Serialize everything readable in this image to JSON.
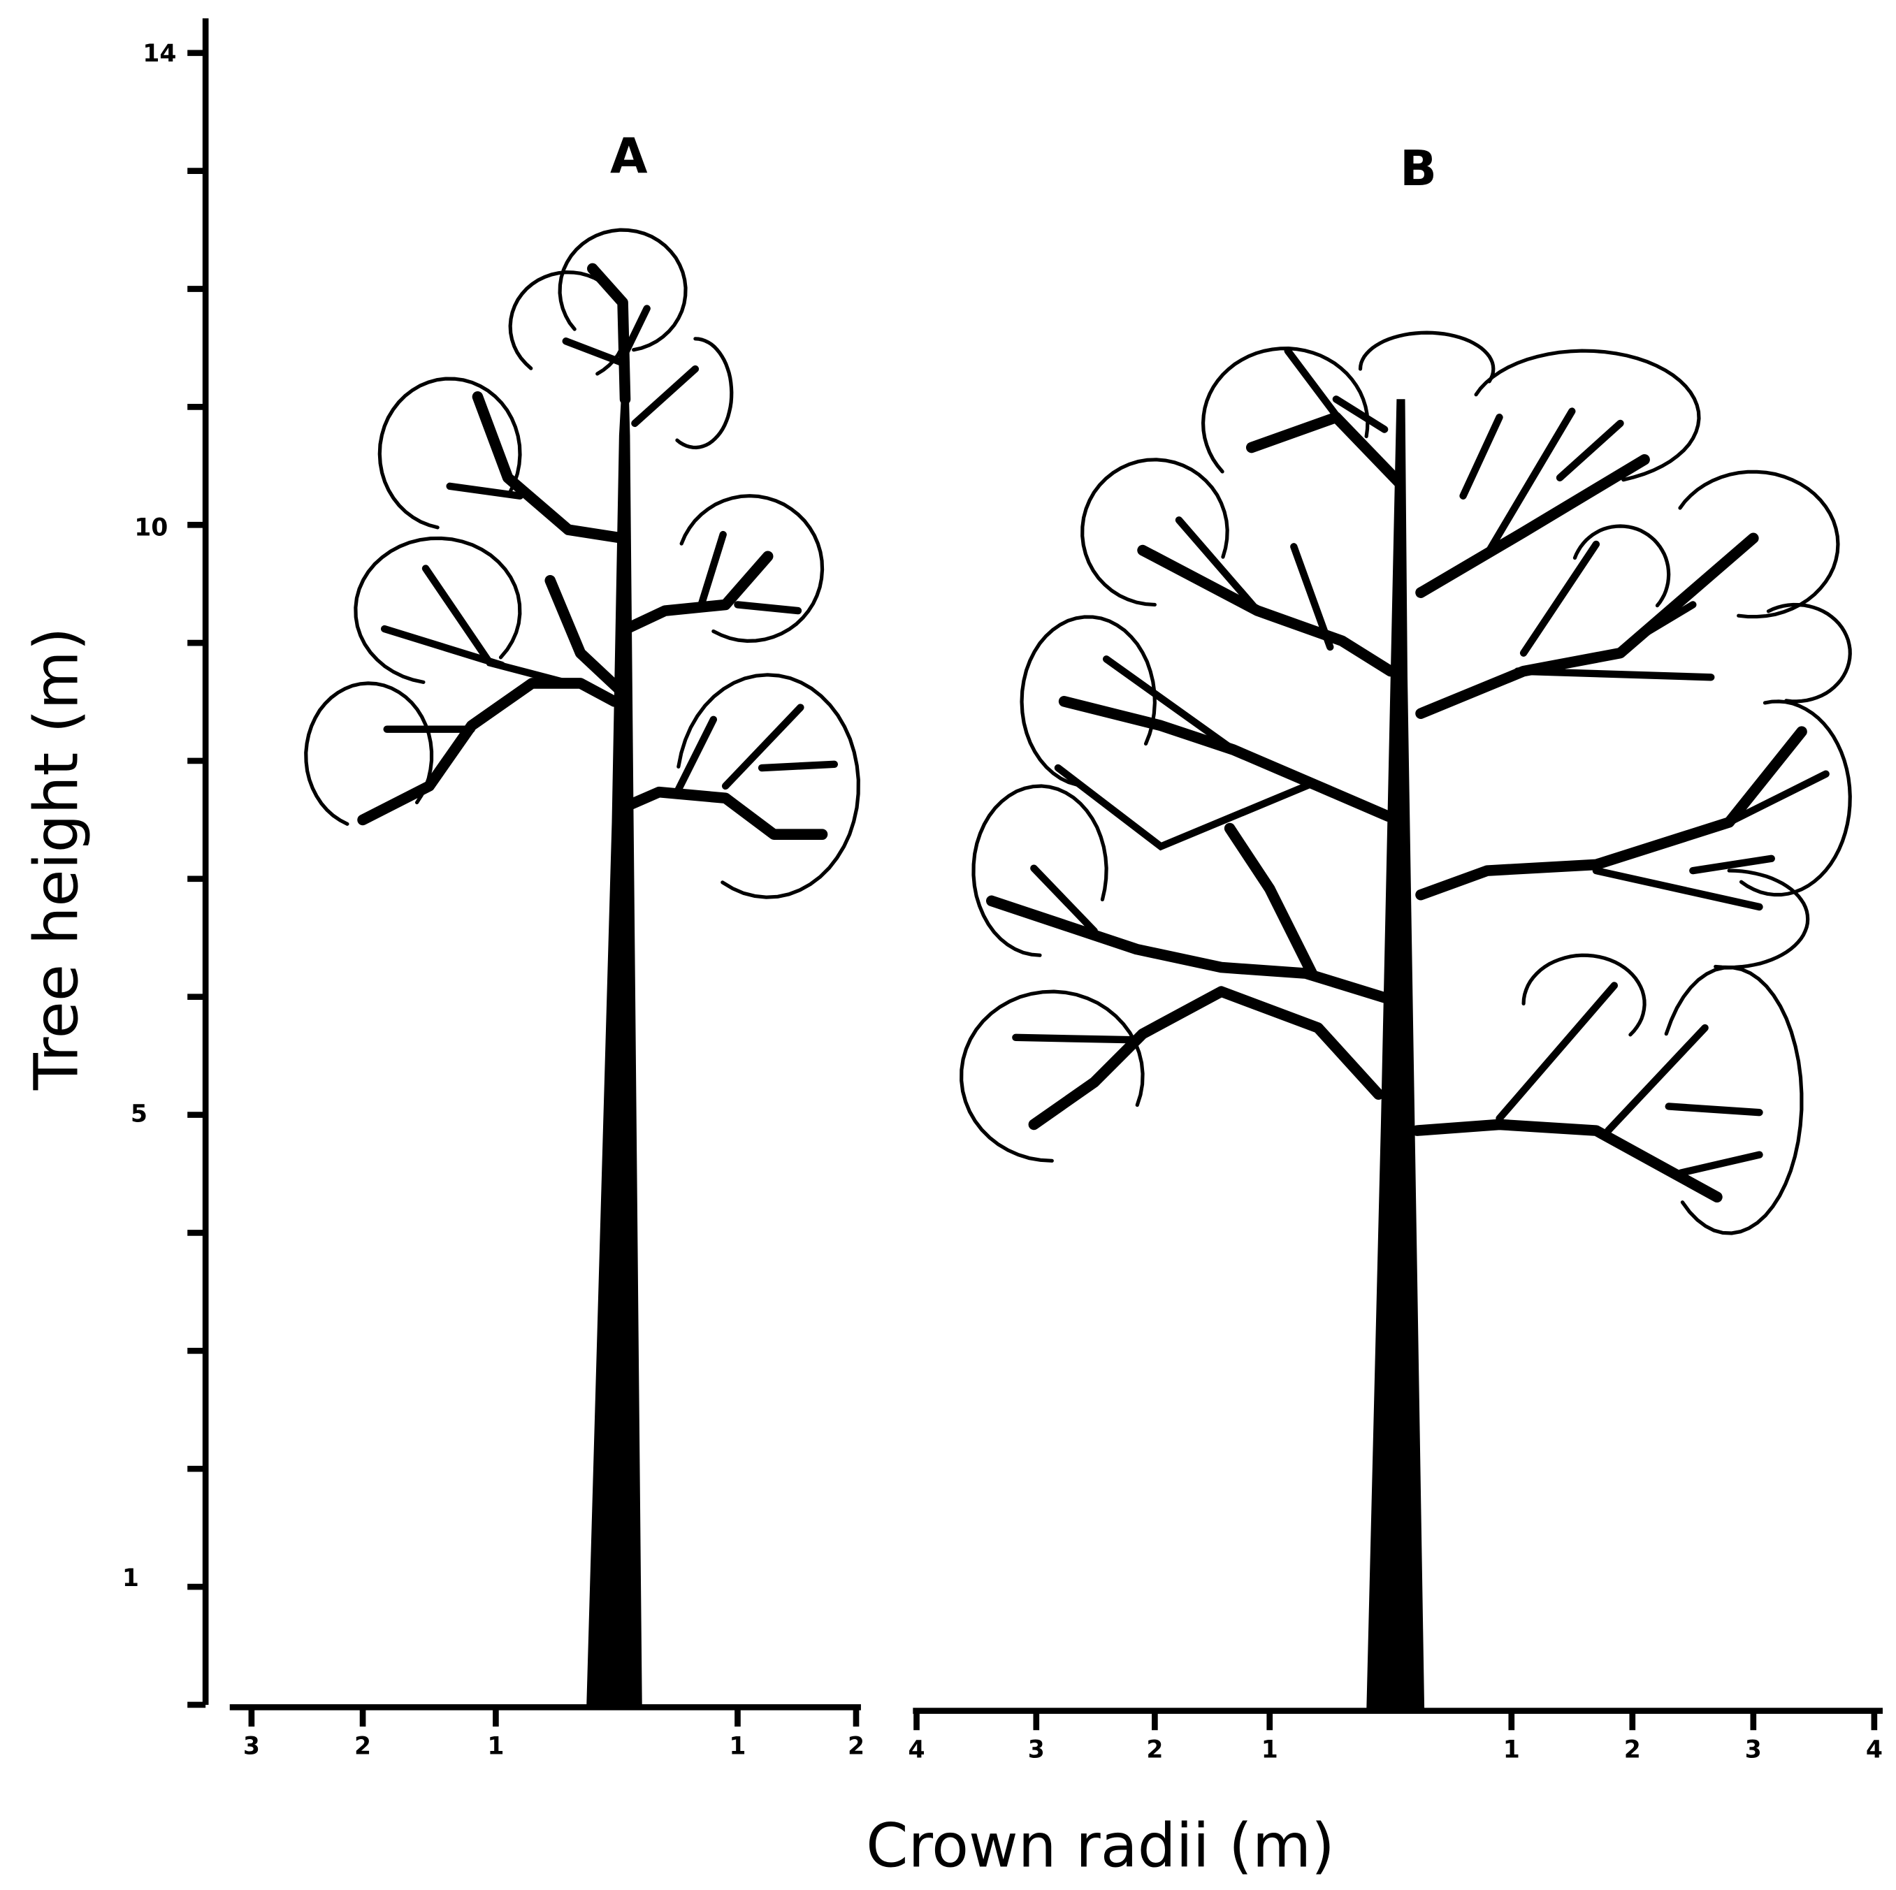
{
  "y_axis": {
    "label": "Tree height (m)",
    "ticks": [
      "14",
      "10",
      "5",
      "1"
    ]
  },
  "panels": [
    {
      "label": "A",
      "x_ticks": [
        "3",
        "2",
        "1",
        "1",
        "2"
      ]
    },
    {
      "label": "B",
      "x_ticks": [
        "4",
        "3",
        "2",
        "1",
        "1",
        "2",
        "3",
        "4"
      ]
    }
  ],
  "x_axis": {
    "label": "Crown radii (m)"
  }
}
